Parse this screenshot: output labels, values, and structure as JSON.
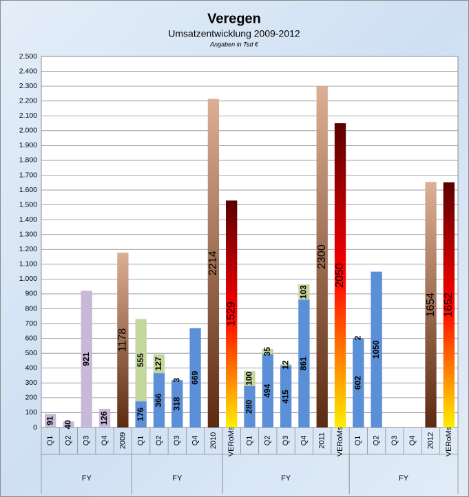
{
  "chart_data": {
    "type": "bar",
    "stacked": true,
    "title": "Veregen",
    "subtitle": "Umsatzentwicklung 2009-2012",
    "note": "Angaben in Tsd €",
    "categories": [
      "Q1",
      "Q2",
      "Q3",
      "Q4",
      "2009",
      "Q1",
      "Q2",
      "Q3",
      "Q4",
      "2010",
      "VERoMst",
      "Q1",
      "Q2",
      "Q3",
      "Q4",
      "2011",
      "VERoMst",
      "Q1",
      "Q2",
      "Q3",
      "Q4",
      "2012",
      "VERoMst"
    ],
    "groups": [
      {
        "label": "FY",
        "start": 0,
        "end": 4
      },
      {
        "label": "FY",
        "start": 5,
        "end": 9
      },
      {
        "label": "FY",
        "start": 10,
        "end": 16
      },
      {
        "label": "FY",
        "start": 17,
        "end": 22
      }
    ],
    "series": [
      {
        "colors": [
          "#c9b9d9",
          "#c9b9d9",
          "#c9b9d9",
          "#c9b9d9",
          null,
          "#5b8fd8",
          "#5b8fd8",
          "#5b8fd8",
          "#5b8fd8",
          null,
          null,
          "#5b8fd8",
          "#5b8fd8",
          "#5b8fd8",
          "#5b8fd8",
          null,
          null,
          "#5b8fd8",
          "#5b8fd8",
          null,
          null,
          null,
          null
        ],
        "values": [
          91,
          40,
          921,
          126,
          null,
          176,
          366,
          318,
          669,
          null,
          null,
          280,
          494,
          415,
          861,
          null,
          null,
          602,
          1050,
          null,
          null,
          null,
          null
        ]
      },
      {
        "color": "#c3d69b",
        "values": [
          null,
          null,
          null,
          null,
          null,
          555,
          127,
          3,
          null,
          null,
          null,
          100,
          35,
          12,
          103,
          null,
          null,
          2,
          null,
          null,
          null,
          null,
          null
        ]
      },
      {
        "gradient": [
          "#dcb096",
          "#5c2a10"
        ],
        "values": [
          null,
          null,
          null,
          null,
          1178,
          null,
          null,
          null,
          null,
          2214,
          null,
          null,
          null,
          null,
          null,
          2300,
          null,
          null,
          null,
          null,
          null,
          1654,
          null
        ]
      },
      {
        "gradient": [
          "#5a0000",
          "#ff0000",
          "#ffee00"
        ],
        "values": [
          null,
          null,
          null,
          null,
          null,
          null,
          null,
          null,
          null,
          null,
          1529,
          null,
          null,
          null,
          null,
          null,
          2050,
          null,
          null,
          null,
          null,
          null,
          1652
        ]
      }
    ],
    "ylim": [
      0,
      2500
    ],
    "yticks": [
      0,
      100,
      200,
      300,
      400,
      500,
      600,
      700,
      800,
      900,
      {
        "value": 1000,
        "label": "1.000"
      },
      {
        "value": 1100,
        "label": "1.100"
      },
      {
        "value": 1200,
        "label": "1.200"
      },
      {
        "value": 1300,
        "label": "1.300"
      },
      {
        "value": 1400,
        "label": "1.400"
      },
      {
        "value": 1500,
        "label": "1.500"
      },
      {
        "value": 1600,
        "label": "1.600"
      },
      {
        "value": 1700,
        "label": "1.700"
      },
      {
        "value": 1800,
        "label": "1.800"
      },
      {
        "value": 1900,
        "label": "1.900"
      },
      {
        "value": 2000,
        "label": "2.000"
      },
      {
        "value": 2100,
        "label": "2.100"
      },
      {
        "value": 2200,
        "label": "2.200"
      },
      {
        "value": 2300,
        "label": "2.300"
      },
      {
        "value": 2400,
        "label": "2.400"
      },
      {
        "value": 2500,
        "label": "2.500"
      }
    ],
    "grid": true
  }
}
